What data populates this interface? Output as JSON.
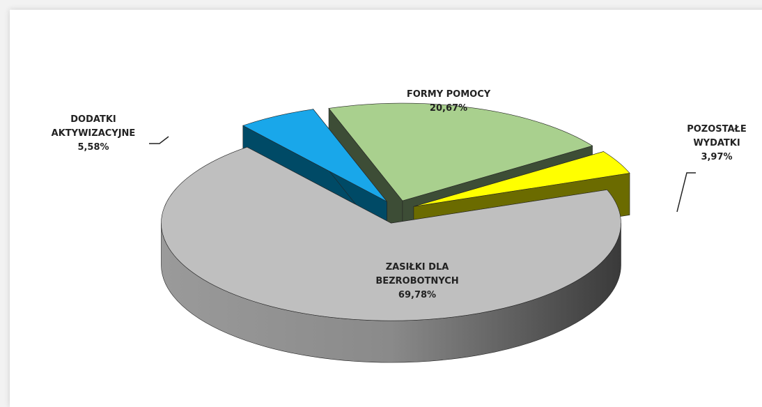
{
  "chart_data": {
    "type": "pie",
    "categories": [
      "ZASIŁKI DLA BEZROBOTNYCH",
      "DODATKI AKTYWIZACYJNE",
      "FORMY POMOCY",
      "POZOSTAŁE WYDATKI"
    ],
    "values": [
      69.78,
      5.58,
      20.67,
      3.97
    ],
    "value_labels": [
      "69,78%",
      "5,58%",
      "20,67%",
      "3,97%"
    ],
    "colors": [
      "#bfbfbf",
      "#19a7ea",
      "#a9d08e",
      "#ffff00"
    ],
    "side_colors": [
      "#6e6e6e",
      "#004a66",
      "#3d4d36",
      "#6b6b00"
    ]
  }
}
